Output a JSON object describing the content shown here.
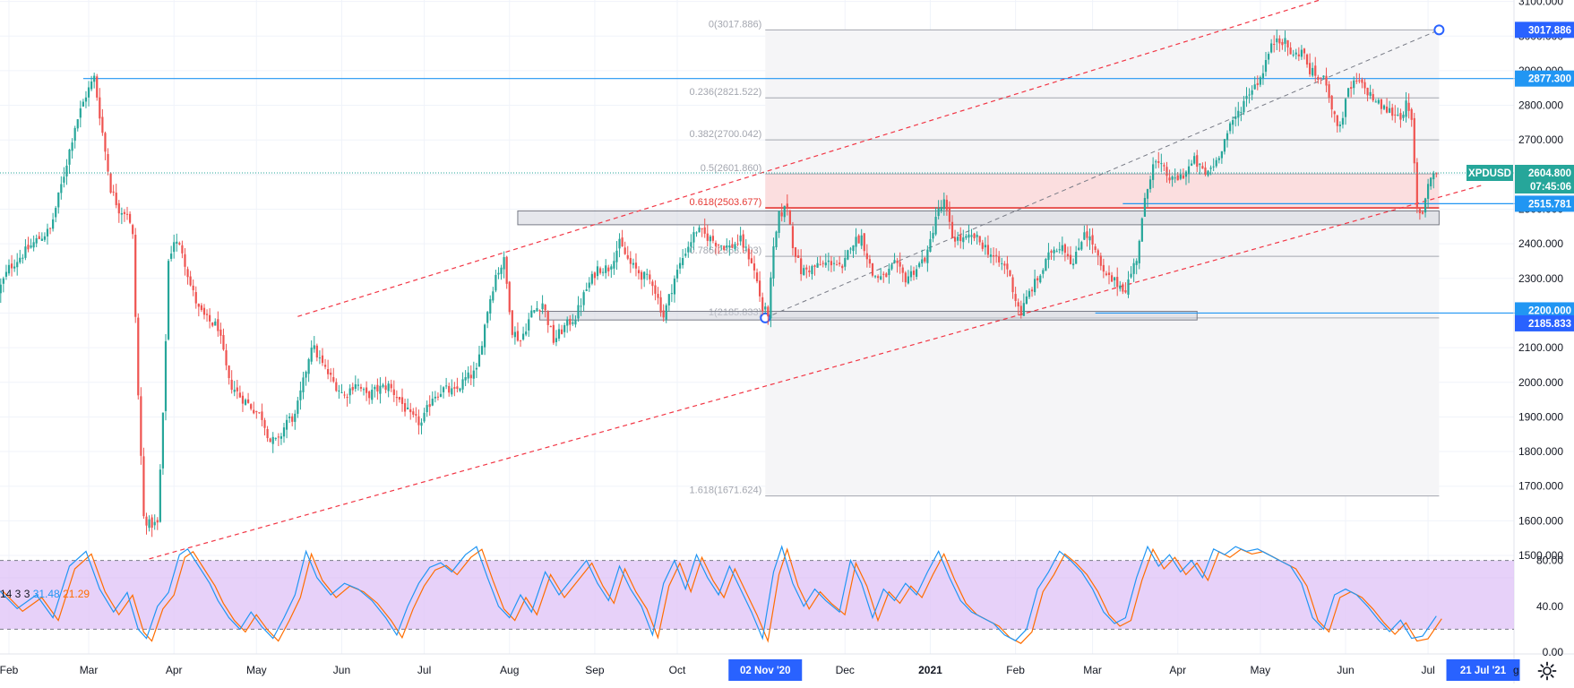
{
  "chart_data": {
    "type": "candlestick",
    "symbol": "XPDUSD",
    "last_price": "2604.800",
    "countdown": "07:45:06",
    "y_axis": {
      "range": [
        1450,
        3110
      ],
      "ticks": [
        "1500.000",
        "1600.000",
        "1700.000",
        "1800.000",
        "1900.000",
        "2000.000",
        "2100.000",
        "2200.000",
        "2300.000",
        "2400.000",
        "2500.000",
        "2600.000",
        "2700.000",
        "2800.000",
        "2900.000",
        "3000.000",
        "3100.000"
      ],
      "tick_values": [
        1500,
        1600,
        1700,
        1800,
        1900,
        2000,
        2100,
        2200,
        2300,
        2400,
        2500,
        2600,
        2700,
        2800,
        2900,
        3000,
        3100
      ]
    },
    "x_axis": {
      "labels": [
        {
          "text": "Feb",
          "day": 0
        },
        {
          "text": "Mar",
          "day": 29
        },
        {
          "text": "Apr",
          "day": 60
        },
        {
          "text": "May",
          "day": 90
        },
        {
          "text": "Jun",
          "day": 121
        },
        {
          "text": "Jul",
          "day": 151
        },
        {
          "text": "Aug",
          "day": 182
        },
        {
          "text": "Sep",
          "day": 213
        },
        {
          "text": "Oct",
          "day": 243
        },
        {
          "text": "Dec",
          "day": 304
        },
        {
          "text": "2021",
          "day": 335,
          "bold": true
        },
        {
          "text": "Feb",
          "day": 366
        },
        {
          "text": "Mar",
          "day": 394
        },
        {
          "text": "Apr",
          "day": 425
        },
        {
          "text": "May",
          "day": 455
        },
        {
          "text": "Jun",
          "day": 486
        },
        {
          "text": "Jul",
          "day": 516
        }
      ],
      "highlights": [
        {
          "text": "02 Nov '20",
          "day": 275
        },
        {
          "text": "21 Jul '21",
          "day": 536
        },
        {
          "text": "g",
          "day": 548
        }
      ]
    },
    "price_path": [
      [
        -4,
        2260
      ],
      [
        0,
        2330
      ],
      [
        5,
        2370
      ],
      [
        10,
        2410
      ],
      [
        15,
        2440
      ],
      [
        20,
        2600
      ],
      [
        24,
        2740
      ],
      [
        28,
        2830
      ],
      [
        31,
        2880
      ],
      [
        34,
        2720
      ],
      [
        37,
        2560
      ],
      [
        40,
        2500
      ],
      [
        43,
        2490
      ],
      [
        45,
        2420
      ],
      [
        47,
        1960
      ],
      [
        49,
        1610
      ],
      [
        51,
        1590
      ],
      [
        54,
        1590
      ],
      [
        56,
        1900
      ],
      [
        58,
        2350
      ],
      [
        60,
        2410
      ],
      [
        63,
        2380
      ],
      [
        66,
        2280
      ],
      [
        69,
        2210
      ],
      [
        72,
        2180
      ],
      [
        76,
        2160
      ],
      [
        80,
        2000
      ],
      [
        84,
        1960
      ],
      [
        88,
        1930
      ],
      [
        92,
        1900
      ],
      [
        95,
        1830
      ],
      [
        98,
        1830
      ],
      [
        101,
        1890
      ],
      [
        104,
        1900
      ],
      [
        107,
        2000
      ],
      [
        110,
        2110
      ],
      [
        114,
        2050
      ],
      [
        118,
        2000
      ],
      [
        122,
        1960
      ],
      [
        126,
        2000
      ],
      [
        130,
        1960
      ],
      [
        134,
        1980
      ],
      [
        138,
        1990
      ],
      [
        142,
        1950
      ],
      [
        146,
        1900
      ],
      [
        150,
        1880
      ],
      [
        154,
        1960
      ],
      [
        158,
        1980
      ],
      [
        162,
        1970
      ],
      [
        166,
        2010
      ],
      [
        170,
        2030
      ],
      [
        174,
        2210
      ],
      [
        177,
        2310
      ],
      [
        180,
        2350
      ],
      [
        183,
        2150
      ],
      [
        186,
        2120
      ],
      [
        190,
        2200
      ],
      [
        194,
        2230
      ],
      [
        198,
        2120
      ],
      [
        202,
        2160
      ],
      [
        206,
        2190
      ],
      [
        210,
        2270
      ],
      [
        214,
        2330
      ],
      [
        218,
        2330
      ],
      [
        222,
        2400
      ],
      [
        226,
        2340
      ],
      [
        230,
        2310
      ],
      [
        234,
        2290
      ],
      [
        238,
        2190
      ],
      [
        242,
        2300
      ],
      [
        246,
        2380
      ],
      [
        250,
        2440
      ],
      [
        254,
        2420
      ],
      [
        258,
        2400
      ],
      [
        262,
        2390
      ],
      [
        266,
        2410
      ],
      [
        270,
        2350
      ],
      [
        272,
        2290
      ],
      [
        274,
        2210
      ],
      [
        276,
        2200
      ],
      [
        278,
        2380
      ],
      [
        280,
        2480
      ],
      [
        283,
        2510
      ],
      [
        285,
        2400
      ],
      [
        288,
        2320
      ],
      [
        292,
        2330
      ],
      [
        296,
        2340
      ],
      [
        300,
        2350
      ],
      [
        303,
        2320
      ],
      [
        306,
        2400
      ],
      [
        310,
        2420
      ],
      [
        314,
        2310
      ],
      [
        318,
        2300
      ],
      [
        322,
        2340
      ],
      [
        326,
        2300
      ],
      [
        330,
        2330
      ],
      [
        334,
        2370
      ],
      [
        337,
        2480
      ],
      [
        340,
        2520
      ],
      [
        343,
        2420
      ],
      [
        347,
        2410
      ],
      [
        351,
        2420
      ],
      [
        355,
        2390
      ],
      [
        359,
        2350
      ],
      [
        363,
        2330
      ],
      [
        366,
        2240
      ],
      [
        368,
        2200
      ],
      [
        371,
        2260
      ],
      [
        375,
        2310
      ],
      [
        379,
        2380
      ],
      [
        383,
        2400
      ],
      [
        387,
        2340
      ],
      [
        391,
        2440
      ],
      [
        394,
        2400
      ],
      [
        398,
        2310
      ],
      [
        402,
        2290
      ],
      [
        406,
        2270
      ],
      [
        410,
        2360
      ],
      [
        413,
        2520
      ],
      [
        416,
        2640
      ],
      [
        419,
        2620
      ],
      [
        423,
        2580
      ],
      [
        427,
        2600
      ],
      [
        431,
        2640
      ],
      [
        435,
        2600
      ],
      [
        439,
        2640
      ],
      [
        443,
        2720
      ],
      [
        447,
        2780
      ],
      [
        451,
        2840
      ],
      [
        455,
        2880
      ],
      [
        458,
        2950
      ],
      [
        461,
        3000
      ],
      [
        464,
        2980
      ],
      [
        467,
        2940
      ],
      [
        470,
        2960
      ],
      [
        473,
        2900
      ],
      [
        476,
        2880
      ],
      [
        479,
        2870
      ],
      [
        482,
        2760
      ],
      [
        484,
        2740
      ],
      [
        487,
        2840
      ],
      [
        490,
        2870
      ],
      [
        494,
        2840
      ],
      [
        497,
        2810
      ],
      [
        500,
        2790
      ],
      [
        503,
        2780
      ],
      [
        506,
        2770
      ],
      [
        508,
        2800
      ],
      [
        510,
        2750
      ],
      [
        512,
        2500
      ],
      [
        514,
        2490
      ],
      [
        516,
        2580
      ],
      [
        518,
        2600
      ],
      [
        519,
        2604.8
      ]
    ],
    "fibonacci": [
      {
        "ratio": "0",
        "price": "3017.886",
        "value": 3017.886,
        "label": "0(3017.886)",
        "color": "#a3a6af"
      },
      {
        "ratio": "0.236",
        "price": "2821.522",
        "value": 2821.522,
        "label": "0.236(2821.522)",
        "color": "#a3a6af"
      },
      {
        "ratio": "0.382",
        "price": "2700.042",
        "value": 2700.042,
        "label": "0.382(2700.042)",
        "color": "#a3a6af"
      },
      {
        "ratio": "0.5",
        "price": "2601.860",
        "value": 2601.86,
        "label": "0.5(2601.860)",
        "color": "#a3a6af"
      },
      {
        "ratio": "0.618",
        "price": "2503.677",
        "value": 2503.677,
        "label": "0.618(2503.677)",
        "color": "#e53935"
      },
      {
        "ratio": "0.786",
        "price": "2363.903",
        "value": 2363.903,
        "label": "0.786(2363.903)",
        "color": "#a3a6af"
      },
      {
        "ratio": "1",
        "price": "2185.833",
        "value": 2185.833,
        "label": "1(2185.833)",
        "color": "#a3a6af"
      },
      {
        "ratio": "1.618",
        "price": "1671.624",
        "value": 1671.624,
        "label": "1.618(1671.624)",
        "color": "#a3a6af"
      }
    ],
    "fib_day_range": [
      275,
      520
    ],
    "highlight_zone": {
      "from": 2503.677,
      "to": 2601.86,
      "day_range": [
        275,
        520
      ]
    },
    "support_zones": [
      {
        "day_range": [
          185,
          520
        ],
        "from": 2455,
        "to": 2495
      },
      {
        "day_range": [
          193,
          432
        ],
        "from": 2180,
        "to": 2205
      }
    ],
    "horizontal_lines": [
      {
        "value": 2877.3,
        "start_day": 27
      },
      {
        "value": 2200.0,
        "start_day": 395
      },
      {
        "value": 2515.781,
        "start_day": 405
      }
    ],
    "channel": {
      "lower": {
        "p1": [
          51,
          1490
        ],
        "p2": [
          536,
          2570
        ]
      },
      "upper": {
        "p1": [
          105,
          2190
        ],
        "p2": [
          479,
          3110
        ]
      },
      "mid": {
        "p1": [
          275,
          2185.833
        ],
        "p2": [
          520,
          3017.886
        ]
      }
    },
    "price_tags": [
      {
        "text": "3017.886",
        "value": 3017.886,
        "bg": "#2962ff"
      },
      {
        "text": "2877.300",
        "value": 2877.3,
        "bg": "#2196f3"
      },
      {
        "text": "2515.781",
        "value": 2515.781,
        "bg": "#2196f3"
      },
      {
        "text": "2200.000",
        "value": 2200.0,
        "bg": "#2196f3"
      },
      {
        "text": "2185.833",
        "value": 2185.833,
        "bg": "#2962ff"
      }
    ],
    "stochastic": {
      "legend": {
        "params": "14 3 3",
        "k": "31.48",
        "d": "21.29"
      },
      "ticks": [
        "80.00",
        "40.00",
        "0.00"
      ],
      "tick_values": [
        80,
        40,
        0
      ],
      "bands": [
        20,
        80
      ],
      "k_path": [
        [
          -4,
          55
        ],
        [
          3,
          38
        ],
        [
          10,
          50
        ],
        [
          16,
          30
        ],
        [
          22,
          75
        ],
        [
          28,
          88
        ],
        [
          33,
          55
        ],
        [
          38,
          35
        ],
        [
          43,
          52
        ],
        [
          47,
          20
        ],
        [
          50,
          12
        ],
        [
          54,
          40
        ],
        [
          58,
          52
        ],
        [
          62,
          85
        ],
        [
          65,
          90
        ],
        [
          69,
          75
        ],
        [
          73,
          60
        ],
        [
          76,
          45
        ],
        [
          80,
          30
        ],
        [
          84,
          20
        ],
        [
          88,
          35
        ],
        [
          92,
          22
        ],
        [
          96,
          12
        ],
        [
          100,
          30
        ],
        [
          104,
          50
        ],
        [
          108,
          88
        ],
        [
          112,
          65
        ],
        [
          117,
          50
        ],
        [
          122,
          60
        ],
        [
          127,
          55
        ],
        [
          132,
          45
        ],
        [
          137,
          30
        ],
        [
          141,
          15
        ],
        [
          145,
          40
        ],
        [
          149,
          60
        ],
        [
          153,
          74
        ],
        [
          157,
          78
        ],
        [
          161,
          70
        ],
        [
          166,
          85
        ],
        [
          170,
          92
        ],
        [
          174,
          65
        ],
        [
          178,
          40
        ],
        [
          182,
          30
        ],
        [
          186,
          50
        ],
        [
          190,
          35
        ],
        [
          195,
          70
        ],
        [
          200,
          50
        ],
        [
          205,
          65
        ],
        [
          210,
          80
        ],
        [
          214,
          60
        ],
        [
          218,
          45
        ],
        [
          222,
          75
        ],
        [
          226,
          55
        ],
        [
          230,
          40
        ],
        [
          234,
          15
        ],
        [
          238,
          60
        ],
        [
          242,
          80
        ],
        [
          246,
          55
        ],
        [
          250,
          85
        ],
        [
          254,
          65
        ],
        [
          258,
          50
        ],
        [
          262,
          75
        ],
        [
          266,
          55
        ],
        [
          270,
          35
        ],
        [
          274,
          12
        ],
        [
          278,
          70
        ],
        [
          281,
          92
        ],
        [
          285,
          60
        ],
        [
          289,
          40
        ],
        [
          293,
          55
        ],
        [
          297,
          45
        ],
        [
          302,
          35
        ],
        [
          306,
          80
        ],
        [
          310,
          60
        ],
        [
          314,
          30
        ],
        [
          318,
          55
        ],
        [
          322,
          45
        ],
        [
          326,
          60
        ],
        [
          330,
          50
        ],
        [
          334,
          70
        ],
        [
          338,
          88
        ],
        [
          342,
          65
        ],
        [
          346,
          45
        ],
        [
          350,
          35
        ],
        [
          354,
          30
        ],
        [
          358,
          25
        ],
        [
          362,
          15
        ],
        [
          366,
          10
        ],
        [
          370,
          20
        ],
        [
          374,
          55
        ],
        [
          378,
          70
        ],
        [
          382,
          88
        ],
        [
          386,
          80
        ],
        [
          390,
          70
        ],
        [
          394,
          55
        ],
        [
          398,
          35
        ],
        [
          402,
          25
        ],
        [
          406,
          30
        ],
        [
          410,
          65
        ],
        [
          414,
          92
        ],
        [
          418,
          75
        ],
        [
          422,
          85
        ],
        [
          426,
          70
        ],
        [
          430,
          80
        ],
        [
          434,
          65
        ],
        [
          438,
          90
        ],
        [
          442,
          85
        ],
        [
          446,
          92
        ],
        [
          450,
          88
        ],
        [
          454,
          90
        ],
        [
          458,
          85
        ],
        [
          462,
          80
        ],
        [
          466,
          75
        ],
        [
          470,
          60
        ],
        [
          474,
          30
        ],
        [
          478,
          20
        ],
        [
          482,
          50
        ],
        [
          486,
          55
        ],
        [
          490,
          50
        ],
        [
          494,
          40
        ],
        [
          498,
          28
        ],
        [
          502,
          18
        ],
        [
          506,
          28
        ],
        [
          510,
          12
        ],
        [
          514,
          14
        ],
        [
          519,
          31.48
        ]
      ]
    }
  }
}
